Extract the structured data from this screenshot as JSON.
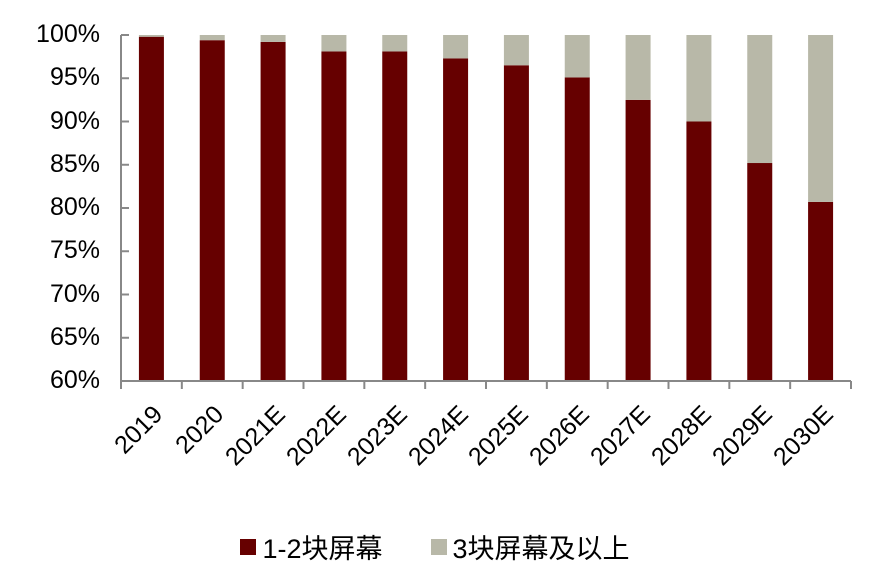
{
  "chart_data": {
    "type": "bar",
    "stacked": true,
    "title": "",
    "xlabel": "",
    "ylabel": "",
    "categories": [
      "2019",
      "2020",
      "2021E",
      "2022E",
      "2023E",
      "2024E",
      "2025E",
      "2026E",
      "2027E",
      "2028E",
      "2029E",
      "2030E"
    ],
    "series": [
      {
        "name": "1-2块屏幕",
        "color": "#660000",
        "values": [
          99.8,
          99.4,
          99.2,
          98.1,
          98.1,
          97.3,
          96.5,
          95.1,
          92.5,
          90.0,
          85.2,
          80.7
        ]
      },
      {
        "name": "3块屏幕及以上",
        "color": "#B8B8A8",
        "values": [
          0.2,
          0.6,
          0.8,
          1.9,
          1.9,
          2.7,
          3.5,
          4.9,
          7.5,
          10.0,
          14.8,
          19.3
        ]
      }
    ],
    "ylim": [
      60,
      100
    ],
    "yticks": [
      "60%",
      "65%",
      "70%",
      "75%",
      "80%",
      "85%",
      "90%",
      "95%",
      "100%"
    ],
    "grid": false,
    "legend_position": "bottom"
  },
  "legend": {
    "items": [
      {
        "label": "1-2块屏幕",
        "color": "#660000"
      },
      {
        "label": "3块屏幕及以上",
        "color": "#B8B8A8"
      }
    ]
  },
  "colors": {
    "axis": "#888888"
  }
}
